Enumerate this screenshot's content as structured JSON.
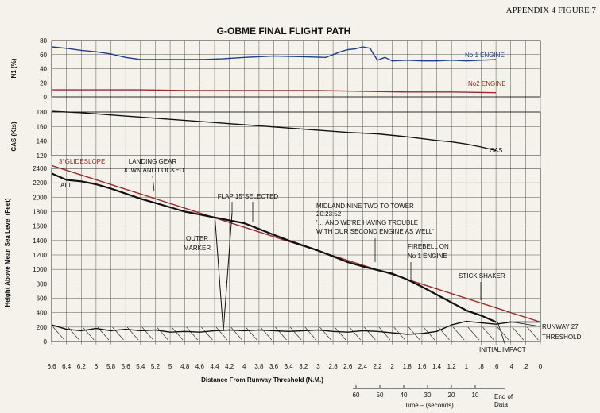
{
  "header": "APPENDIX 4  FIGURE 7",
  "chart_data": {
    "type": "line",
    "title": "G-OBME FINAL FLIGHT PATH",
    "x": {
      "label": "Distance From Runway Threshold (N.M.)",
      "range": [
        6.6,
        0
      ],
      "ticks": [
        "6.6",
        "6.4",
        "6.2",
        "6",
        "5.8",
        "5.6",
        "5.4",
        "5.2",
        "5",
        "4.8",
        "4.6",
        "4.4",
        "4.2",
        "4",
        "3.8",
        "3.6",
        "3.4",
        "3.2",
        "3",
        "2.8",
        "2.6",
        "2.4",
        "2.2",
        "2",
        "1.8",
        "1.6",
        "1.4",
        "1.2",
        "1",
        ".8",
        ".6",
        ".4",
        ".2",
        "0"
      ]
    },
    "time_axis": {
      "label": "Time – (seconds)",
      "ticks": [
        "60",
        "50",
        "40",
        "30",
        "20",
        "10"
      ],
      "end_label": "End of Data"
    },
    "panels": [
      {
        "id": "n1",
        "ylabel": "N1 (%)",
        "ylim": [
          0,
          80
        ],
        "yticks": [
          "0",
          "20",
          "40",
          "60",
          "80"
        ],
        "series": [
          {
            "name": "No 1 ENGINE",
            "color": "#1d3f8f",
            "x": [
              6.6,
              6.4,
              6.2,
              6.0,
              5.8,
              5.6,
              5.4,
              5.0,
              4.6,
              4.3,
              4.0,
              3.6,
              3.2,
              2.9,
              2.7,
              2.6,
              2.5,
              2.4,
              2.3,
              2.25,
              2.2,
              2.1,
              2.0,
              1.8,
              1.6,
              1.4,
              1.2,
              1.0,
              0.8,
              0.6
            ],
            "y": [
              71,
              69,
              66,
              64,
              61,
              56,
              53,
              53,
              53,
              54,
              56,
              58,
              57,
              56,
              64,
              67,
              68,
              71,
              69,
              60,
              52,
              56,
              51,
              52,
              51,
              51,
              52,
              51,
              52,
              53
            ]
          },
          {
            "name": "No2 ENGINE",
            "color": "#9c2a2a",
            "x": [
              6.6,
              6.0,
              5.4,
              4.8,
              4.2,
              3.6,
              3.0,
              2.4,
              1.8,
              1.2,
              0.6
            ],
            "y": [
              10,
              10,
              10,
              9,
              9,
              9,
              9,
              8,
              7,
              7,
              6
            ]
          }
        ]
      },
      {
        "id": "cas",
        "ylabel": "CAS (Kts)",
        "ylim": [
          120,
          180
        ],
        "yticks": [
          "120",
          "140",
          "160",
          "180"
        ],
        "series": [
          {
            "name": "CAS",
            "color": "#111111",
            "x": [
              6.6,
              6.2,
              5.8,
              5.4,
              5.0,
              4.6,
              4.2,
              3.8,
              3.4,
              3.0,
              2.6,
              2.2,
              1.8,
              1.4,
              1.2,
              1.0,
              0.8,
              0.6
            ],
            "y": [
              181,
              179,
              176,
              173,
              170,
              167,
              164,
              161,
              158,
              155,
              152,
              150,
              146,
              141,
              139,
              136,
              132,
              127
            ]
          }
        ]
      },
      {
        "id": "alt",
        "ylabel": "Height Above Mean Sea Level (Feet)",
        "ylim": [
          0,
          2400
        ],
        "yticks": [
          "0",
          "200",
          "400",
          "600",
          "800",
          "1000",
          "1200",
          "1400",
          "1600",
          "1800",
          "2000",
          "2200",
          "2400"
        ],
        "series": [
          {
            "name": "3°GLIDESLOPE",
            "color": "#9c2a2a",
            "x": [
              6.6,
              0.0
            ],
            "y": [
              2440,
              270
            ]
          },
          {
            "name": "ALT",
            "color": "#111111",
            "x": [
              6.6,
              6.4,
              6.2,
              6.0,
              5.8,
              5.6,
              5.4,
              5.2,
              5.0,
              4.8,
              4.6,
              4.4,
              4.3,
              4.2,
              4.0,
              3.8,
              3.6,
              3.4,
              3.2,
              3.0,
              2.8,
              2.6,
              2.4,
              2.2,
              2.0,
              1.8,
              1.6,
              1.4,
              1.2,
              1.0,
              0.8,
              0.6
            ],
            "y": [
              2330,
              2240,
              2220,
              2180,
              2120,
              2050,
              1980,
              1920,
              1860,
              1800,
              1760,
              1720,
              1700,
              1680,
              1640,
              1560,
              1480,
              1400,
              1330,
              1260,
              1180,
              1100,
              1040,
              990,
              940,
              860,
              760,
              650,
              540,
              430,
              360,
              270
            ]
          },
          {
            "name": "TERRAIN",
            "color": "#111111",
            "x": [
              6.6,
              6.4,
              6.2,
              6.0,
              5.8,
              5.6,
              5.4,
              5.2,
              5.0,
              4.8,
              4.6,
              4.4,
              4.2,
              4.0,
              3.8,
              3.6,
              3.4,
              3.2,
              3.0,
              2.8,
              2.6,
              2.4,
              2.2,
              2.0,
              1.8,
              1.6,
              1.4,
              1.2,
              1.0,
              0.8,
              0.6,
              0.4,
              0.2,
              0.0
            ],
            "y": [
              230,
              170,
              150,
              180,
              150,
              170,
              150,
              160,
              130,
              140,
              130,
              150,
              160,
              150,
              160,
              150,
              140,
              150,
              160,
              140,
              130,
              150,
              140,
              120,
              100,
              110,
              140,
              230,
              280,
              260,
              240,
              270,
              270,
              270
            ]
          }
        ]
      }
    ],
    "annotations": [
      "LANDING GEAR DOWN AND LOCKED",
      "FLAP 15°SELECTED",
      "OUTER MARKER",
      "MIDLAND NINE TWO TO TOWER 20:23:52 '… AND WE'RE HAVING TROUBLE WITH OUR SECOND ENGINE AS WELL'",
      "FIREBELL ON No 1 ENGINE",
      "STICK SHAKER",
      "RUNWAY 27 THRESHOLD",
      "INITIAL IMPACT"
    ]
  }
}
